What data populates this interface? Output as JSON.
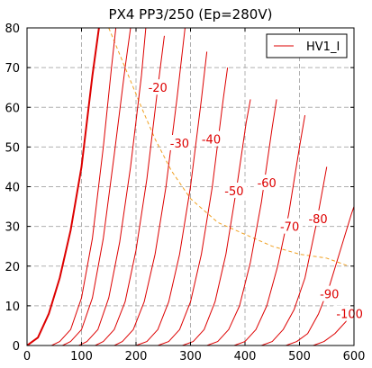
{
  "chart_data": {
    "type": "line",
    "title": "PX4 PP3/250 (Ep=280V)",
    "xlabel": "",
    "ylabel": "",
    "xlim": [
      0,
      600
    ],
    "ylim": [
      0,
      80
    ],
    "xticks": [
      0,
      100,
      200,
      300,
      400,
      500,
      600
    ],
    "yticks": [
      0,
      10,
      20,
      30,
      40,
      50,
      60,
      70,
      80
    ],
    "grid": true,
    "legend": {
      "position": "top-right",
      "entries": [
        "HV1_I"
      ]
    },
    "series": [
      {
        "name": "HV1_I",
        "color": "#dd0000",
        "bold": true,
        "points": [
          [
            0,
            0
          ],
          [
            20,
            2
          ],
          [
            40,
            8
          ],
          [
            60,
            17
          ],
          [
            80,
            29
          ],
          [
            100,
            45
          ],
          [
            120,
            68
          ],
          [
            132,
            80
          ]
        ]
      },
      {
        "name": "",
        "color": "#dd0000",
        "points": [
          [
            45,
            0
          ],
          [
            60,
            1
          ],
          [
            80,
            4
          ],
          [
            100,
            12
          ],
          [
            120,
            27
          ],
          [
            140,
            50
          ],
          [
            155,
            70
          ],
          [
            163,
            80
          ]
        ]
      },
      {
        "name": "",
        "color": "#dd0000",
        "points": [
          [
            65,
            0
          ],
          [
            80,
            1
          ],
          [
            100,
            4
          ],
          [
            120,
            12
          ],
          [
            140,
            27
          ],
          [
            160,
            48
          ],
          [
            180,
            70
          ],
          [
            190,
            80
          ]
        ]
      },
      {
        "name": "",
        "color": "#dd0000",
        "points": [
          [
            95,
            0
          ],
          [
            110,
            1
          ],
          [
            130,
            4
          ],
          [
            150,
            12
          ],
          [
            170,
            26
          ],
          [
            190,
            45
          ],
          [
            210,
            68
          ],
          [
            218,
            80
          ]
        ]
      },
      {
        "name": "",
        "color": "#dd0000",
        "points": [
          [
            125,
            0
          ],
          [
            140,
            1
          ],
          [
            160,
            4
          ],
          [
            180,
            11
          ],
          [
            200,
            24
          ],
          [
            220,
            42
          ],
          [
            240,
            65
          ],
          [
            252,
            78
          ]
        ]
      },
      {
        "name": "",
        "color": "#dd0000",
        "points": [
          [
            160,
            0
          ],
          [
            175,
            1
          ],
          [
            195,
            4
          ],
          [
            215,
            11
          ],
          [
            235,
            23
          ],
          [
            255,
            40
          ],
          [
            275,
            62
          ],
          [
            290,
            80
          ]
        ]
      },
      {
        "name": "",
        "color": "#dd0000",
        "points": [
          [
            200,
            0
          ],
          [
            220,
            1
          ],
          [
            240,
            4
          ],
          [
            260,
            11
          ],
          [
            280,
            23
          ],
          [
            300,
            40
          ],
          [
            320,
            62
          ],
          [
            330,
            74
          ]
        ]
      },
      {
        "name": "",
        "color": "#dd0000",
        "points": [
          [
            240,
            0
          ],
          [
            260,
            1
          ],
          [
            280,
            4
          ],
          [
            300,
            11
          ],
          [
            320,
            23
          ],
          [
            340,
            40
          ],
          [
            360,
            62
          ],
          [
            368,
            70
          ]
        ]
      },
      {
        "name": "",
        "color": "#dd0000",
        "points": [
          [
            285,
            0
          ],
          [
            305,
            1
          ],
          [
            325,
            4
          ],
          [
            345,
            11
          ],
          [
            365,
            23
          ],
          [
            385,
            40
          ],
          [
            402,
            56
          ],
          [
            410,
            62
          ]
        ]
      },
      {
        "name": "",
        "color": "#dd0000",
        "points": [
          [
            330,
            0
          ],
          [
            350,
            1
          ],
          [
            370,
            4
          ],
          [
            390,
            10
          ],
          [
            410,
            21
          ],
          [
            430,
            36
          ],
          [
            450,
            55
          ],
          [
            458,
            62
          ]
        ]
      },
      {
        "name": "",
        "color": "#dd0000",
        "points": [
          [
            380,
            0
          ],
          [
            400,
            1
          ],
          [
            420,
            4
          ],
          [
            440,
            10
          ],
          [
            460,
            20
          ],
          [
            480,
            33
          ],
          [
            500,
            50
          ],
          [
            510,
            58
          ]
        ]
      },
      {
        "name": "",
        "color": "#dd0000",
        "points": [
          [
            430,
            0
          ],
          [
            450,
            1
          ],
          [
            470,
            4
          ],
          [
            490,
            9
          ],
          [
            510,
            17
          ],
          [
            530,
            30
          ],
          [
            550,
            45
          ]
        ]
      },
      {
        "name": "",
        "color": "#dd0000",
        "points": [
          [
            475,
            0
          ],
          [
            495,
            1
          ],
          [
            515,
            3
          ],
          [
            535,
            8
          ],
          [
            555,
            15
          ],
          [
            575,
            24
          ],
          [
            595,
            33
          ],
          [
            600,
            35
          ]
        ]
      },
      {
        "name": "",
        "color": "#dd0000",
        "points": [
          [
            525,
            0
          ],
          [
            545,
            1
          ],
          [
            565,
            3
          ],
          [
            585,
            6
          ],
          [
            600,
            9
          ]
        ]
      }
    ],
    "load_line": {
      "color": "#f0a020",
      "style": "dashed",
      "points": [
        [
          150,
          80
        ],
        [
          180,
          70
        ],
        [
          210,
          60
        ],
        [
          235,
          52
        ],
        [
          265,
          44
        ],
        [
          300,
          37
        ],
        [
          350,
          31
        ],
        [
          400,
          28
        ],
        [
          450,
          25
        ],
        [
          500,
          23
        ],
        [
          550,
          22
        ],
        [
          590,
          20
        ]
      ]
    },
    "annotations": [
      {
        "text": "-20",
        "x": 240,
        "y": 65
      },
      {
        "text": "-30",
        "x": 280,
        "y": 51
      },
      {
        "text": "-40",
        "x": 338,
        "y": 52
      },
      {
        "text": "-50",
        "x": 380,
        "y": 39
      },
      {
        "text": "-60",
        "x": 440,
        "y": 41
      },
      {
        "text": "-70",
        "x": 482,
        "y": 30
      },
      {
        "text": "-80",
        "x": 534,
        "y": 32
      },
      {
        "text": "-90",
        "x": 555,
        "y": 13
      },
      {
        "text": "-100",
        "x": 592,
        "y": 8
      }
    ]
  }
}
